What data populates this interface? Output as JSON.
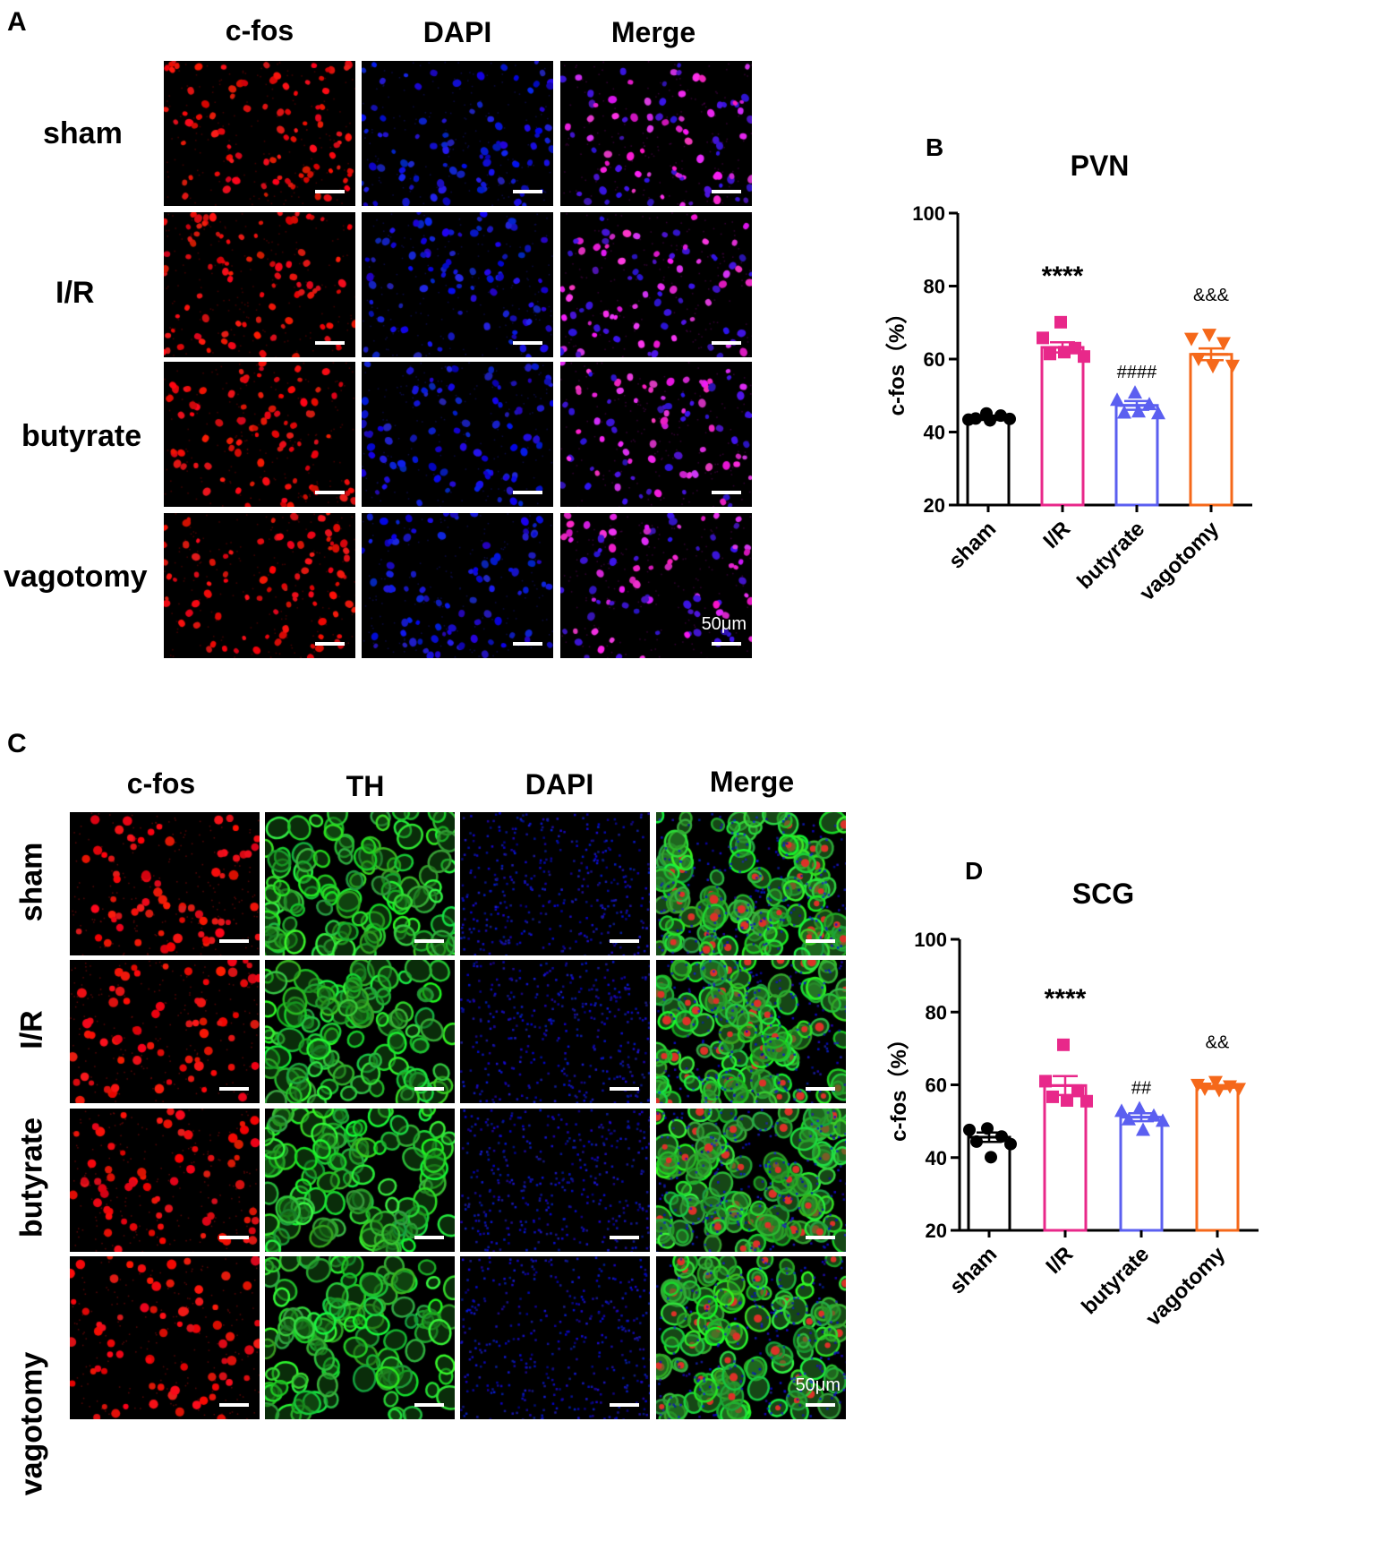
{
  "panel_a": {
    "letter": "A",
    "columns": [
      "c-fos",
      "DAPI",
      "Merge"
    ],
    "rows": [
      "sham",
      "I/R",
      "butyrate",
      "vagotomy"
    ],
    "scale_label": "50μm"
  },
  "panel_c": {
    "letter": "C",
    "columns": [
      "c-fos",
      "TH",
      "DAPI",
      "Merge"
    ],
    "rows": [
      "sham",
      "I/R",
      "butyrate",
      "vagotomy"
    ],
    "scale_label": "50μm"
  },
  "chart_data": [
    {
      "panel": "B",
      "type": "bar",
      "title": "PVN",
      "ylabel": "c-fos（%）",
      "xlabel": "",
      "ylim": [
        20,
        100
      ],
      "yticks": [
        20,
        40,
        60,
        80,
        100
      ],
      "categories": [
        "sham",
        "I/R",
        "butyrate",
        "vagotomy"
      ],
      "colors": [
        "#000000",
        "#e8288a",
        "#5b5ff0",
        "#f5681a"
      ],
      "markers": [
        "circle",
        "square",
        "triangle-up",
        "triangle-down"
      ],
      "values": [
        43.9,
        63.2,
        47.3,
        61.3
      ],
      "sem": [
        0.6,
        1.4,
        1.2,
        1.6
      ],
      "points": [
        [
          45.1,
          43.4,
          44.5,
          43.7,
          43.6,
          43.2
        ],
        [
          70.1,
          65.8,
          63.0,
          61.4,
          60.7,
          61.9
        ],
        [
          50.9,
          48.9,
          47.7,
          45.4,
          45.2,
          45.7
        ],
        [
          66.6,
          65.5,
          64.3,
          60.0,
          58.1,
          58.0
        ]
      ],
      "annotations": [
        "",
        "****",
        "####",
        "&&&"
      ]
    },
    {
      "panel": "D",
      "type": "bar",
      "title": "SCG",
      "ylabel": "c-fos（%）",
      "xlabel": "",
      "ylim": [
        20,
        100
      ],
      "yticks": [
        20,
        40,
        60,
        80,
        100
      ],
      "categories": [
        "sham",
        "I/R",
        "butyrate",
        "vagotomy"
      ],
      "colors": [
        "#000000",
        "#e8288a",
        "#5b5ff0",
        "#f5681a"
      ],
      "markers": [
        "circle",
        "square",
        "triangle-up",
        "triangle-down"
      ],
      "values": [
        45.6,
        59.8,
        51.1,
        59.3
      ],
      "sem": [
        1.3,
        2.6,
        1.1,
        0.4
      ],
      "points": [
        [
          48.0,
          47.6,
          45.8,
          44.4,
          43.7,
          40.1
        ],
        [
          71.0,
          61.0,
          58.3,
          56.7,
          55.5,
          55.7
        ],
        [
          53.6,
          52.9,
          51.6,
          50.6,
          50.2,
          47.7
        ],
        [
          60.7,
          59.9,
          59.5,
          58.9,
          58.8,
          58.5
        ]
      ],
      "annotations": [
        "",
        "****",
        "##",
        "&&"
      ]
    }
  ]
}
